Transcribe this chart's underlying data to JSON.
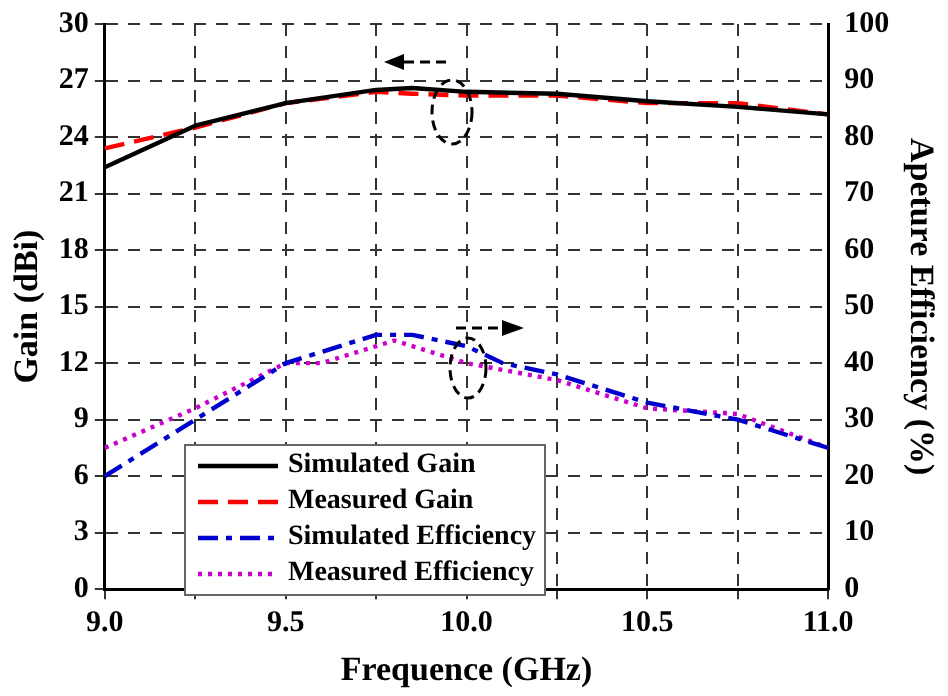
{
  "chart_data": {
    "type": "line",
    "xlabel": "Frequence (GHz)",
    "ylabel": "Gain (dBi)",
    "y2label": "Apeture Efficiency (%)",
    "xlim": [
      9.0,
      11.0
    ],
    "xticks": [
      {
        "value": 9.0,
        "label": "9.0"
      },
      {
        "value": 9.25,
        "label": null
      },
      {
        "value": 9.5,
        "label": "9.5"
      },
      {
        "value": 9.75,
        "label": null
      },
      {
        "value": 10.0,
        "label": "10.0"
      },
      {
        "value": 10.25,
        "label": null
      },
      {
        "value": 10.5,
        "label": "10.5"
      },
      {
        "value": 10.75,
        "label": null
      },
      {
        "value": 11.0,
        "label": "11.0"
      }
    ],
    "ylim": [
      0,
      30
    ],
    "yticks": [
      0,
      3,
      6,
      9,
      12,
      15,
      18,
      21,
      24,
      27,
      30
    ],
    "y2lim": [
      0,
      100
    ],
    "y2ticks": [
      0,
      10,
      20,
      30,
      40,
      50,
      60,
      70,
      80,
      90,
      100
    ],
    "grid": true,
    "legend": "bottom left",
    "marker": "none",
    "series": [
      {
        "name": "Simulated Gain",
        "color": "#000000",
        "line_style": "solid",
        "x": [
          9.0,
          9.25,
          9.5,
          9.75,
          9.85,
          10.0,
          10.25,
          10.5,
          10.75,
          11.0
        ],
        "values": [
          22.4,
          24.6,
          25.8,
          26.5,
          26.6,
          26.4,
          26.3,
          25.9,
          25.6,
          25.2
        ]
      },
      {
        "name": "Measured Gain",
        "color": "#ff0000",
        "line_style": "dashed",
        "x": [
          9.0,
          9.25,
          9.5,
          9.75,
          9.85,
          10.0,
          10.25,
          10.5,
          10.75,
          11.0
        ],
        "values": [
          23.4,
          24.5,
          25.8,
          26.4,
          26.3,
          26.2,
          26.2,
          25.8,
          25.8,
          25.2
        ]
      },
      {
        "name": "Simulated Efficiency",
        "color": "#0000cc",
        "line_style": "dashdot",
        "axis": "y2",
        "x": [
          9.0,
          9.25,
          9.5,
          9.75,
          9.85,
          10.0,
          10.1,
          10.25,
          10.5,
          10.75,
          11.0
        ],
        "values": [
          20,
          30,
          40,
          45,
          45,
          43,
          40,
          38,
          33,
          30,
          25
        ]
      },
      {
        "name": "Measured Efficiency",
        "color": "#cc00cc",
        "line_style": "dotted",
        "axis": "y2",
        "x": [
          9.0,
          9.25,
          9.5,
          9.6,
          9.8,
          10.0,
          10.25,
          10.5,
          10.75,
          11.0
        ],
        "values": [
          25,
          32,
          40,
          40,
          44,
          40,
          37,
          32,
          31,
          25
        ]
      }
    ]
  }
}
